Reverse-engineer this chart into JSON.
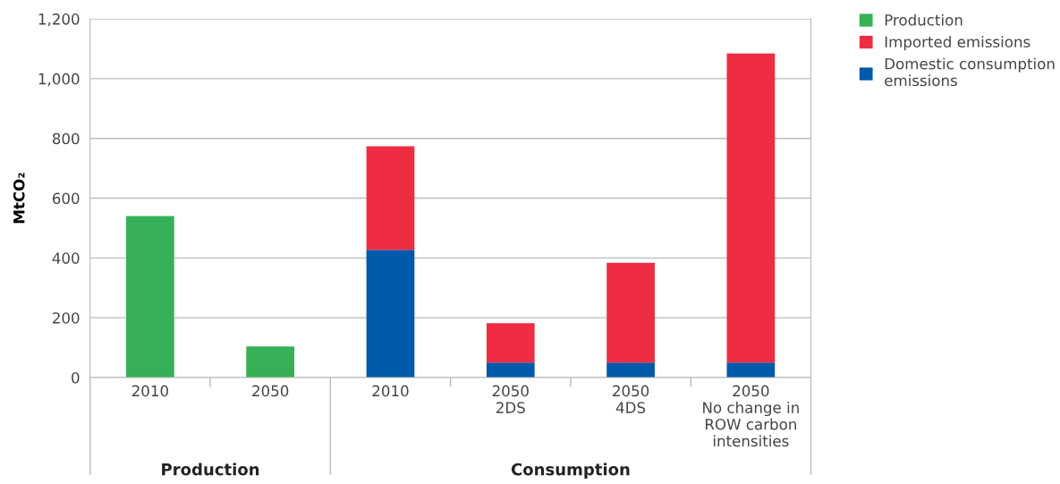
{
  "chart_data": {
    "type": "bar",
    "stacked": true,
    "ylabel": "MtCO₂",
    "categories": [
      "2010",
      "2050",
      "2010",
      "2050\n2DS",
      "2050\n4DS",
      "2050\nNo change in\nROW carbon\nintensities"
    ],
    "series": [
      {
        "name": "Domestic consumption\nemissions",
        "color": "#0059a9",
        "values": [
          null,
          null,
          427,
          50,
          50,
          50
        ]
      },
      {
        "name": "Imported emissions",
        "color": "#ee2d42",
        "values": [
          null,
          null,
          347,
          132,
          334,
          1034
        ]
      },
      {
        "name": "Production",
        "color": "#36b057",
        "values": [
          540,
          104,
          null,
          null,
          null,
          null
        ]
      }
    ],
    "ylim": [
      0,
      1200
    ],
    "yticks": [
      0,
      200,
      400,
      600,
      800,
      {
        "value": 1000,
        "label": "1,000"
      },
      {
        "value": 1200,
        "label": "1,200"
      }
    ],
    "grid": "y",
    "legend": "top right",
    "annotations": [
      "Production",
      "Consumption"
    ]
  }
}
